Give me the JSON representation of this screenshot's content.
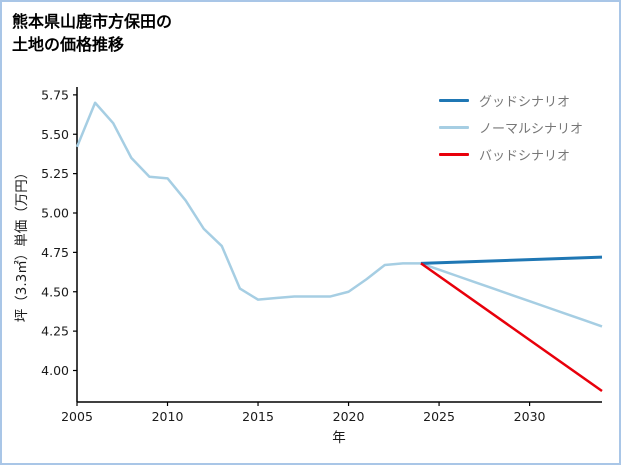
{
  "page": {
    "border_color": "#a9c6e7",
    "background": "#ffffff"
  },
  "title": {
    "line1": "熊本県山鹿市方保田の",
    "line2": "土地の価格推移"
  },
  "chart_data": {
    "type": "line",
    "title": "熊本県山鹿市方保田の土地の価格推移",
    "xlabel": "年",
    "ylabel": "坪（3.3㎡）単価（万円）",
    "xlim": [
      2005,
      2034
    ],
    "ylim": [
      3.8,
      5.8
    ],
    "x_ticks": [
      2005,
      2010,
      2015,
      2020,
      2025,
      2030
    ],
    "y_ticks": [
      4.0,
      4.25,
      4.5,
      4.75,
      5.0,
      5.25,
      5.5,
      5.75
    ],
    "grid": false,
    "legend_position": "upper right",
    "series": [
      {
        "name": "グッドシナリオ",
        "color": "#1f77b4",
        "line_width": 3,
        "z": 1,
        "x": [
          2024,
          2034
        ],
        "values": [
          4.68,
          4.72
        ]
      },
      {
        "name": "ノーマルシナリオ",
        "color": "#a6cee3",
        "line_width": 2.5,
        "z": 0,
        "x": [
          2005,
          2006,
          2007,
          2008,
          2009,
          2010,
          2011,
          2012,
          2013,
          2014,
          2015,
          2016,
          2017,
          2018,
          2019,
          2020,
          2021,
          2022,
          2023,
          2024,
          2025,
          2026,
          2027,
          2028,
          2029,
          2030,
          2031,
          2032,
          2033,
          2034
        ],
        "values": [
          5.42,
          5.7,
          5.57,
          5.35,
          5.23,
          5.22,
          5.08,
          4.9,
          4.79,
          4.52,
          4.45,
          4.46,
          4.47,
          4.47,
          4.47,
          4.5,
          4.58,
          4.67,
          4.68,
          4.68,
          4.64,
          4.6,
          4.56,
          4.52,
          4.48,
          4.44,
          4.4,
          4.36,
          4.32,
          4.28
        ]
      },
      {
        "name": "バッドシナリオ",
        "color": "#e8000b",
        "line_width": 2.5,
        "z": 2,
        "x": [
          2024,
          2034
        ],
        "values": [
          4.68,
          3.87
        ]
      }
    ]
  }
}
